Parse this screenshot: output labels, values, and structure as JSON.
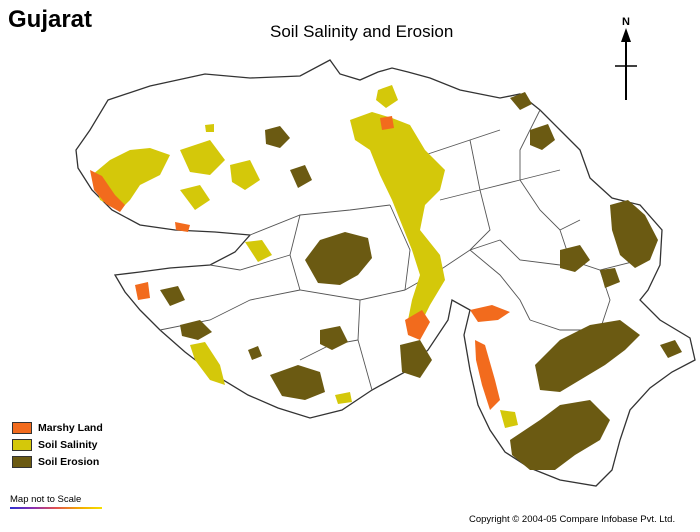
{
  "map": {
    "title": "Gujarat",
    "subtitle": "Soil Salinity and Erosion",
    "north_label": "N",
    "scale_note": "Map not to Scale",
    "copyright": "Copyright © 2004-05 Compare Infobase Pvt. Ltd."
  },
  "legend": [
    {
      "label": "Marshy Land",
      "color": "#f26b1d"
    },
    {
      "label": "Soil Salinity",
      "color": "#d4c80a"
    },
    {
      "label": "Soil Erosion",
      "color": "#6b5a12"
    }
  ],
  "colors": {
    "boundary": "#333333",
    "district_lines": "#555555",
    "background": "#ffffff"
  }
}
